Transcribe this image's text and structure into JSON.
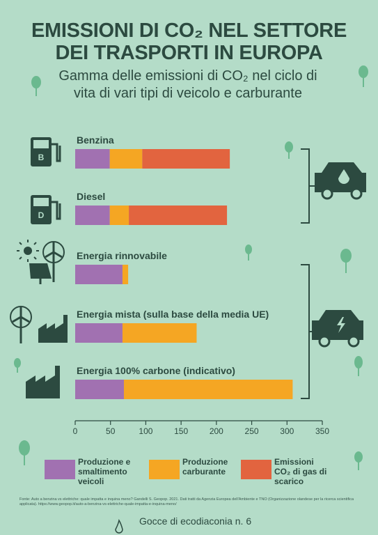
{
  "title": "EMISSIONI DI CO₂ NEL SETTORE DEI TRASPORTI IN EUROPA",
  "subtitle": "Gamma delle emissioni di CO₂ nel ciclo di vita di vari tipi di veicolo e carburante",
  "chart_data": {
    "type": "bar",
    "orientation": "horizontal",
    "stacked": true,
    "categories": [
      "Benzina",
      "Diesel",
      "Energia rinnovabile",
      "Energia mista (sulla base della media UE)",
      "Energia 100% carbone (indicativo)"
    ],
    "series": [
      {
        "name": "Produzione e smaltimento veicoli",
        "color": "#a171b1",
        "values": [
          49,
          49,
          67,
          67,
          69
        ]
      },
      {
        "name": "Produzione carburante",
        "color": "#f5a623",
        "values": [
          46,
          27,
          8,
          105,
          239
        ]
      },
      {
        "name": "Emissioni CO₂ di gas di scarico",
        "color": "#e2643f",
        "values": [
          124,
          139,
          null,
          null,
          null
        ]
      }
    ],
    "xlim": [
      0,
      350
    ],
    "xticks": [
      0,
      50,
      100,
      150,
      200,
      250,
      300,
      350
    ]
  },
  "source": "Fonte: Auto a benzina vs elettriche: quale impatta e inquina meno? Gandelli S. Geopop. 2021. Dati tratti da Agenzia Europea dell'Ambiente e TNO (Organizzazione olandese per la ricerca scientifica applicata). https://www.geopop.it/auto-a-benzina-vs-elettriche-quale-impatta-e-inquina-meno/",
  "footer": "Gocce di ecodiaconia n. 6"
}
